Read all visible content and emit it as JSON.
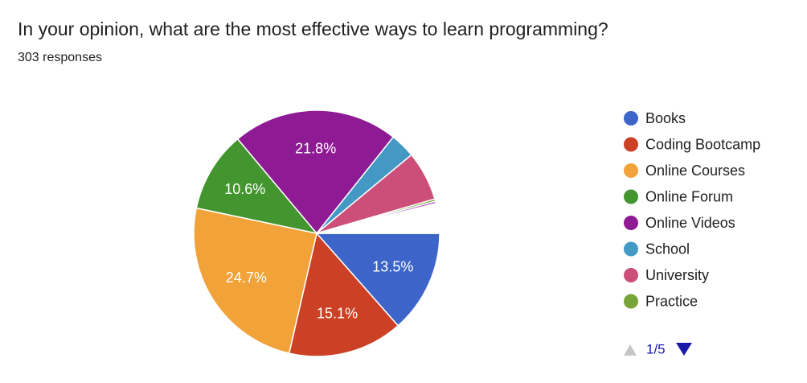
{
  "chart_data": {
    "type": "pie",
    "title": "In your opinion, what are the most effective ways to learn programming?",
    "subtitle": "303 responses",
    "categories": [
      "Books",
      "Coding Bootcamp",
      "Online Courses",
      "Online Forum",
      "Online Videos",
      "School",
      "University",
      "Practice",
      null,
      null
    ],
    "values": [
      13.5,
      15.1,
      24.7,
      10.6,
      21.8,
      3.3,
      6.5,
      0.3,
      0.3,
      3.9
    ],
    "value_labels": [
      "13.5%",
      "15.1%",
      "24.7%",
      "10.6%",
      "21.8%",
      null,
      null,
      null,
      null,
      null
    ],
    "colors": [
      "#3d65c9",
      "#cc4125",
      "#f1a33a",
      "#43962f",
      "#8e1b93",
      "#4398c4",
      "#cc4f79",
      "#78a43a",
      "#ab47bc",
      "#ffffff"
    ],
    "legend_page": "1/5"
  }
}
